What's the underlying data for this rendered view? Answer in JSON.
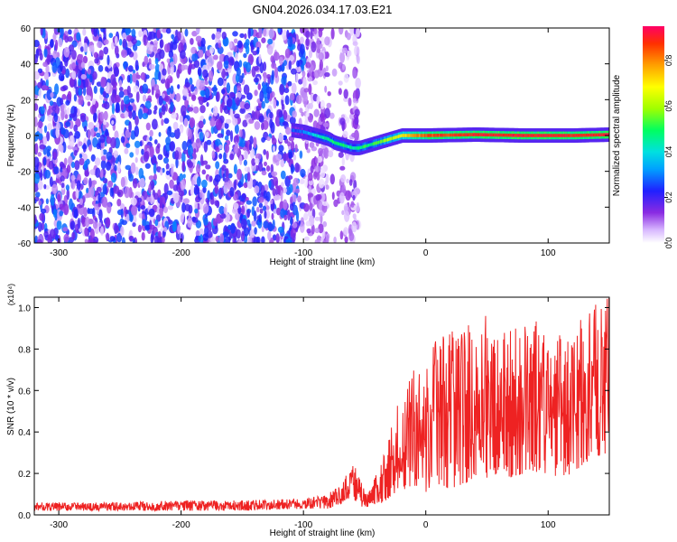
{
  "figure_title": "GN04.2026.034.17.03.E21",
  "chart_data": [
    {
      "type": "heatmap",
      "title": "GN04.2026.034.17.03.E21",
      "xlabel": "Height of straight line (km)",
      "ylabel": "Frequency (Hz)",
      "xlim": [
        -320,
        150
      ],
      "ylim": [
        -60,
        60
      ],
      "x_ticks": [
        -300,
        -200,
        -100,
        0,
        100
      ],
      "y_ticks": [
        -60,
        -40,
        -20,
        0,
        20,
        40,
        60
      ],
      "colorbar": {
        "label": "Normalized spectral amplitude",
        "range": [
          0,
          0.95
        ],
        "ticks": [
          0.0,
          0.2,
          0.4,
          0.6,
          0.8
        ],
        "colormap": "rainbow (violet to red)"
      },
      "noise_region": {
        "x_from": -320,
        "x_to": -55,
        "gap": [
          -80,
          -70
        ],
        "amplitude": "0.0-0.3"
      },
      "signal_band": {
        "x": [
          -110,
          -100,
          -90,
          -80,
          -75,
          -70,
          -65,
          -60,
          -55,
          -50,
          -45,
          -40,
          -30,
          -20,
          0,
          40,
          80,
          120,
          150
        ],
        "frequency_hz": [
          3,
          2,
          0,
          -2,
          -4,
          -5,
          -6,
          -7,
          -7,
          -6,
          -5,
          -4,
          -2,
          0,
          0,
          0.5,
          0,
          0,
          0.5
        ],
        "peak_amplitude": [
          0.25,
          0.3,
          0.4,
          0.45,
          0.5,
          0.5,
          0.45,
          0.45,
          0.45,
          0.5,
          0.5,
          0.55,
          0.6,
          0.7,
          0.85,
          0.9,
          0.9,
          0.9,
          0.9
        ]
      }
    },
    {
      "type": "line",
      "xlabel": "Height of straight line (km)",
      "ylabel": "SNR (10 * v/v)",
      "y_multiplier": "(x10⁴)",
      "xlim": [
        -320,
        150
      ],
      "ylim": [
        0,
        1.05
      ],
      "x_ticks": [
        -300,
        -200,
        -100,
        0,
        100
      ],
      "y_ticks": [
        0.0,
        0.2,
        0.4,
        0.6,
        0.8,
        1.0
      ],
      "series": [
        {
          "name": "SNR",
          "color": "#ee2222",
          "x": [
            -320,
            -250,
            -200,
            -150,
            -100,
            -90,
            -80,
            -70,
            -65,
            -62,
            -60,
            -55,
            -50,
            -45,
            -40,
            -35,
            -30,
            -25,
            -20,
            -15,
            -10,
            -5,
            0,
            10,
            20,
            30,
            40,
            50,
            60,
            70,
            80,
            90,
            100,
            110,
            120,
            130,
            140,
            150
          ],
          "envelope_low": [
            0.02,
            0.02,
            0.02,
            0.02,
            0.03,
            0.03,
            0.03,
            0.05,
            0.07,
            0.08,
            0.08,
            0.05,
            0.03,
            0.04,
            0.05,
            0.06,
            0.08,
            0.1,
            0.12,
            0.12,
            0.14,
            0.14,
            0.1,
            0.15,
            0.12,
            0.15,
            0.16,
            0.18,
            0.2,
            0.18,
            0.2,
            0.2,
            0.2,
            0.18,
            0.2,
            0.25,
            0.28,
            0.3
          ],
          "envelope_high": [
            0.06,
            0.06,
            0.07,
            0.07,
            0.08,
            0.09,
            0.1,
            0.15,
            0.2,
            0.25,
            0.3,
            0.2,
            0.12,
            0.14,
            0.2,
            0.3,
            0.4,
            0.5,
            0.62,
            0.62,
            0.7,
            0.72,
            0.72,
            0.9,
            0.95,
            0.95,
            0.9,
            0.98,
            0.9,
            0.92,
            0.9,
            0.98,
            0.85,
            0.88,
            0.92,
            0.95,
            1.05,
            1.05
          ]
        }
      ]
    }
  ]
}
